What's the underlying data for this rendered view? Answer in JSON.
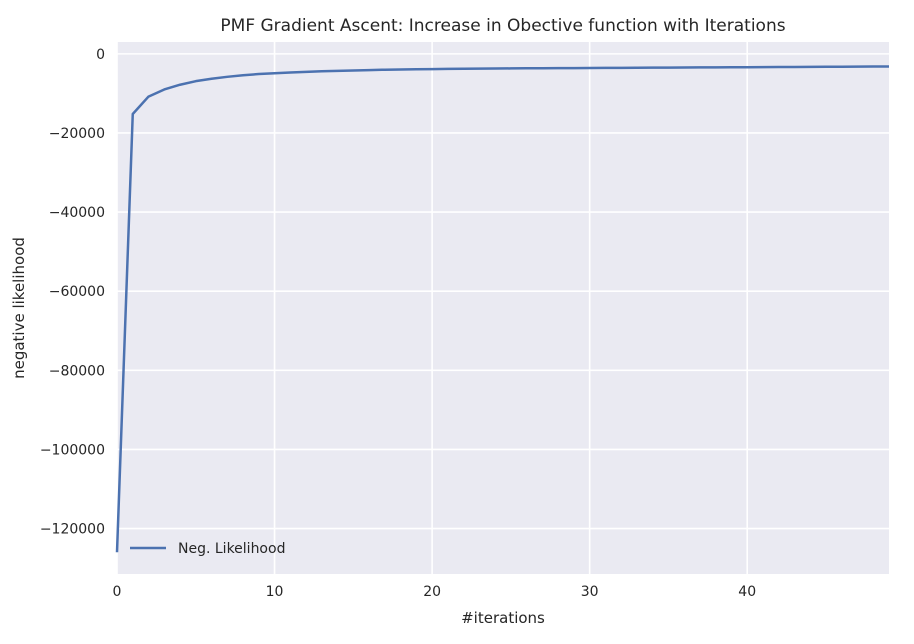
{
  "chart_data": {
    "type": "line",
    "title": "PMF Gradient Ascent: Increase in Obective function with Iterations",
    "xlabel": "#iterations",
    "ylabel": "negative likelihood",
    "xlim": [
      0,
      49
    ],
    "ylim": [
      -131500,
      3000
    ],
    "xticks": [
      0,
      10,
      20,
      30,
      40
    ],
    "yticks": [
      0,
      -20000,
      -40000,
      -60000,
      -80000,
      -100000,
      -120000
    ],
    "grid": true,
    "legend_position": "lower-left",
    "series": [
      {
        "name": "Neg. Likelihood",
        "color": "#4c72b0",
        "x": [
          0,
          1,
          2,
          3,
          4,
          5,
          6,
          7,
          8,
          9,
          10,
          11,
          12,
          13,
          14,
          15,
          16,
          17,
          18,
          19,
          20,
          21,
          22,
          23,
          24,
          25,
          26,
          27,
          28,
          29,
          30,
          31,
          32,
          33,
          34,
          35,
          36,
          37,
          38,
          39,
          40,
          41,
          42,
          43,
          44,
          45,
          46,
          47,
          48,
          49
        ],
        "values": [
          -126000,
          -15200,
          -10800,
          -9000,
          -7800,
          -6900,
          -6300,
          -5800,
          -5400,
          -5100,
          -4900,
          -4700,
          -4550,
          -4400,
          -4300,
          -4200,
          -4100,
          -4000,
          -3950,
          -3900,
          -3850,
          -3800,
          -3770,
          -3740,
          -3710,
          -3680,
          -3650,
          -3630,
          -3610,
          -3590,
          -3570,
          -3550,
          -3530,
          -3510,
          -3490,
          -3470,
          -3450,
          -3430,
          -3410,
          -3390,
          -3370,
          -3350,
          -3330,
          -3310,
          -3290,
          -3270,
          -3250,
          -3230,
          -3210,
          -3190
        ]
      }
    ]
  },
  "colors": {
    "plot_background": "#eaeaf2",
    "grid": "#ffffff",
    "text": "#262626",
    "line": "#4c72b0"
  }
}
